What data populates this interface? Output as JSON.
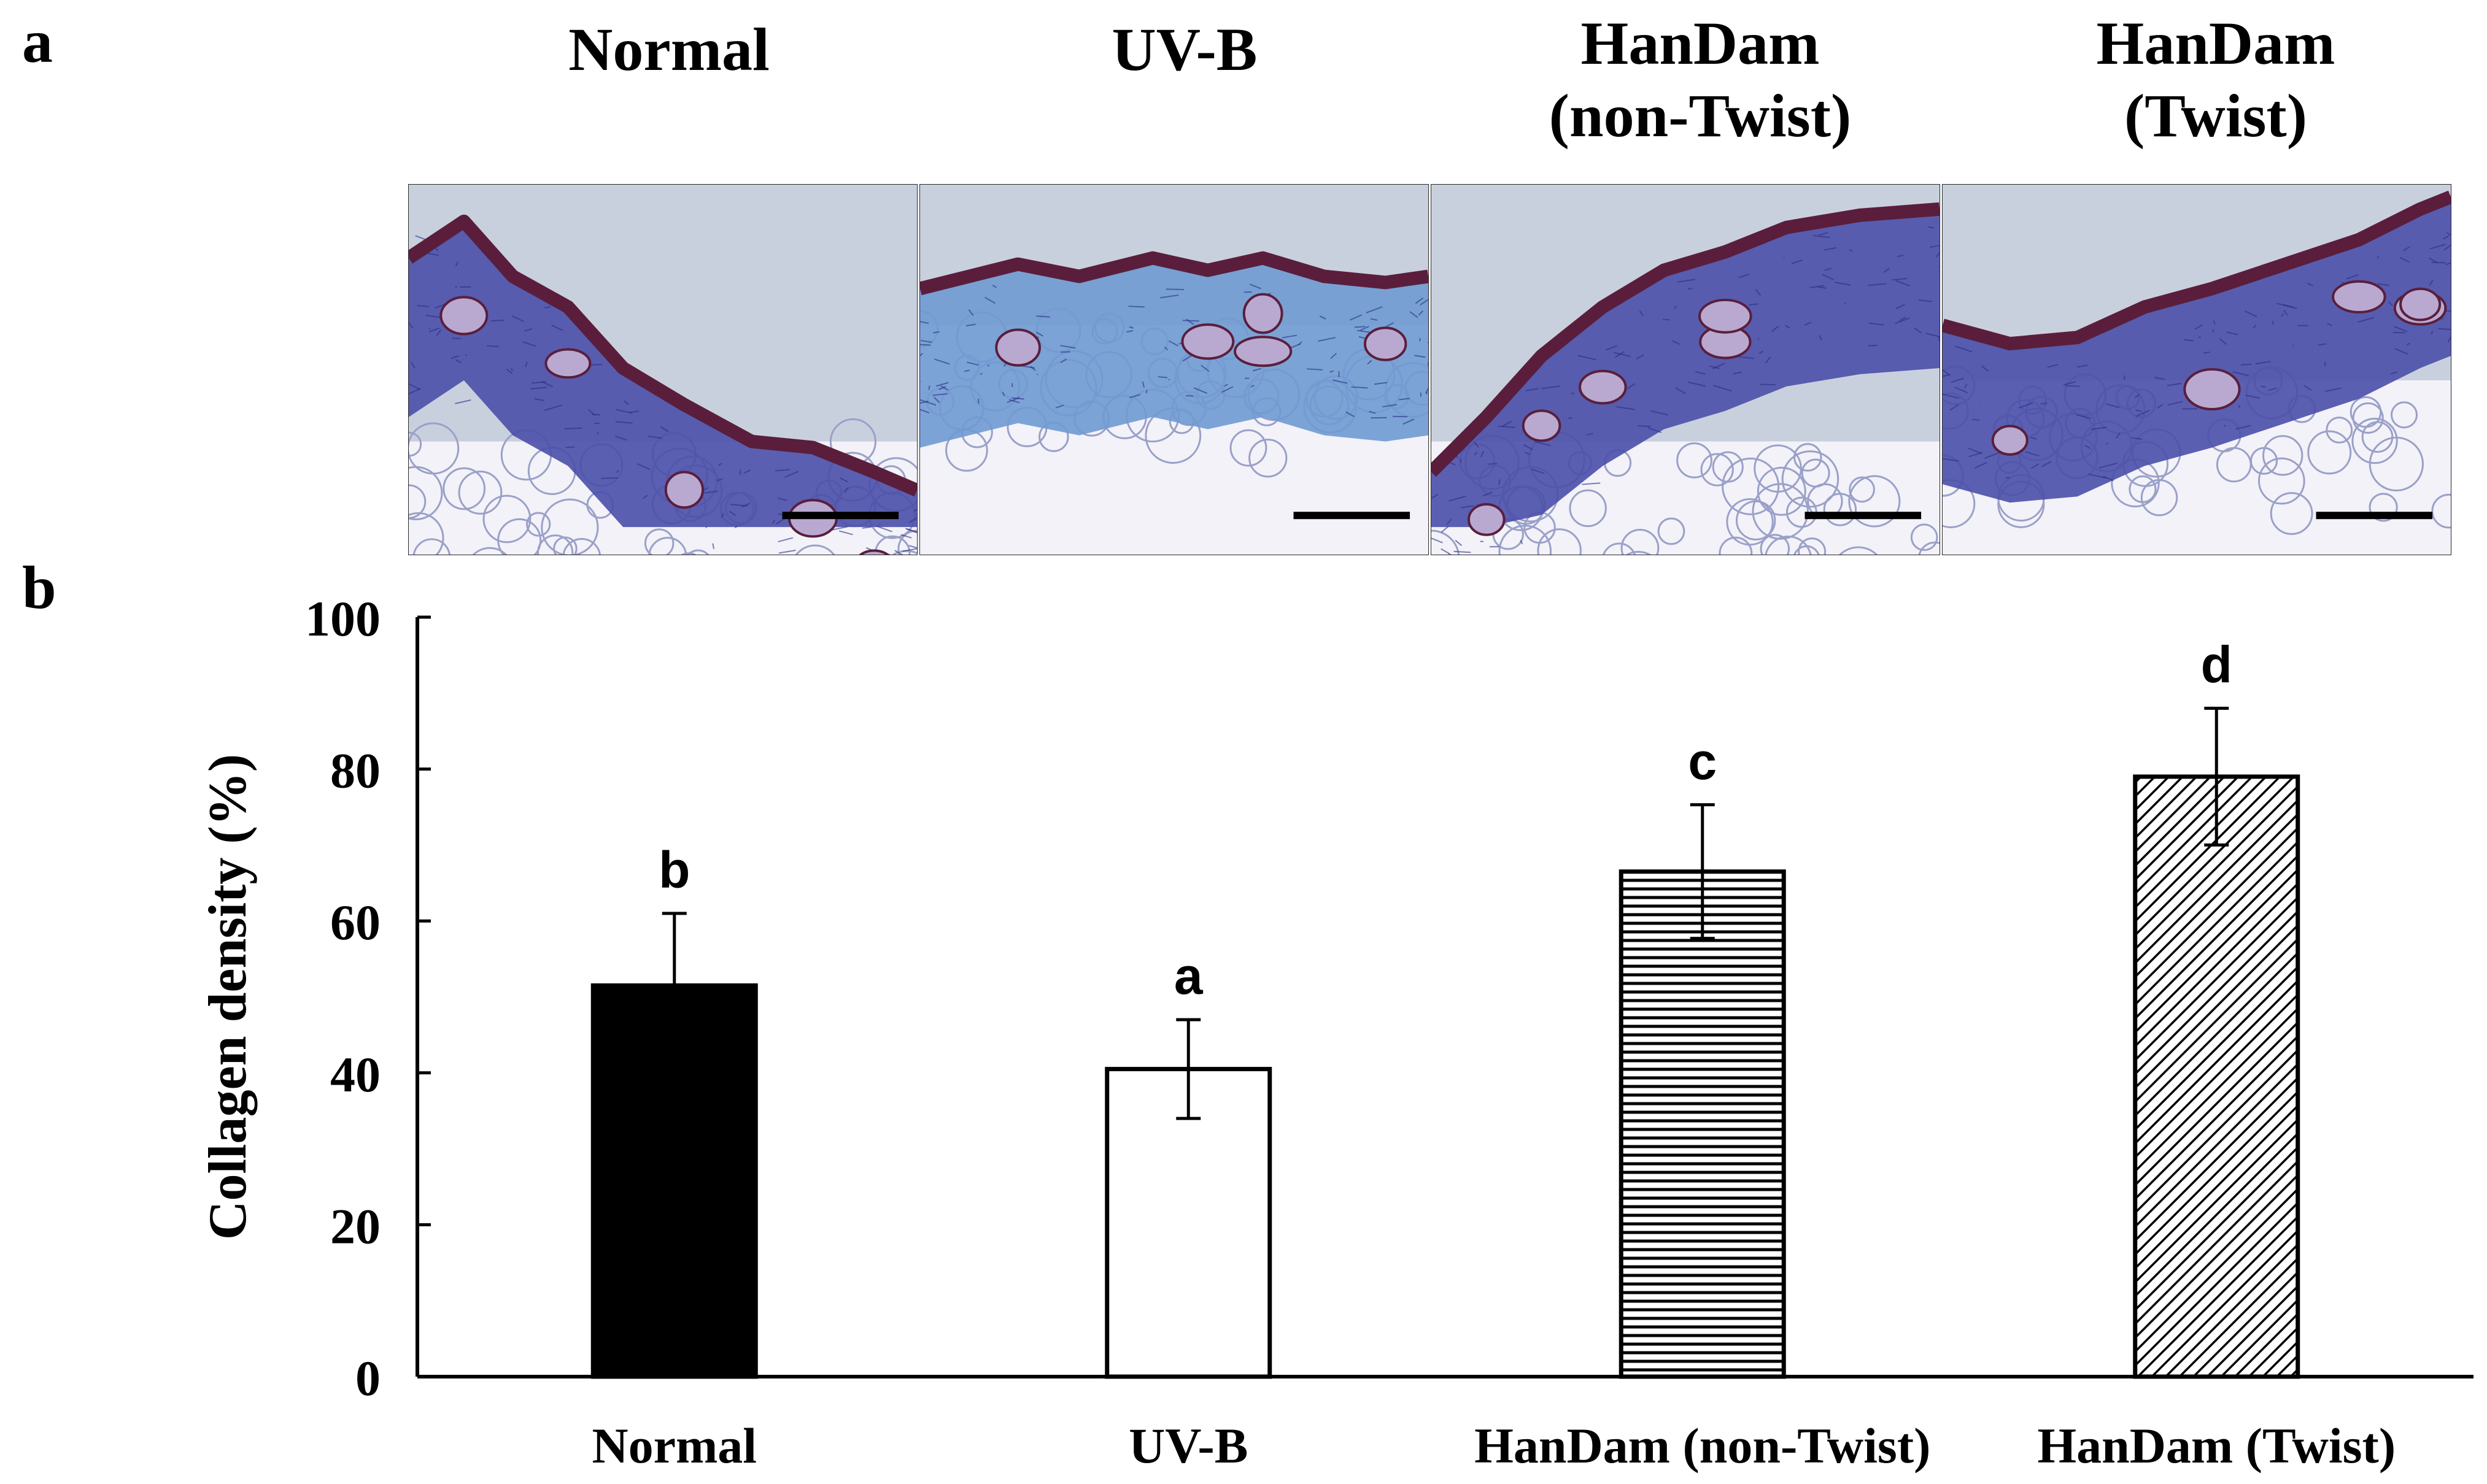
{
  "panel_labels": {
    "a": "a",
    "b": "b"
  },
  "micrograph_columns": [
    {
      "line1": "",
      "line2": "Normal"
    },
    {
      "line1": "",
      "line2": "UV-B"
    },
    {
      "line1": "HanDam",
      "line2": "(non-Twist)"
    },
    {
      "line1": "HanDam",
      "line2": "(Twist)"
    }
  ],
  "micrograph_tissue": [
    "skin-section-normal",
    "skin-section-uvb",
    "skin-section-handam-non-twist",
    "skin-section-handam-twist"
  ],
  "colors": {
    "background": "#c9d0dd",
    "epidermis": "#5a1e3c",
    "dermis": "#4a4fa8",
    "collagen_light": "#6f9ad2",
    "fat": "#f2f2f8",
    "scale_bar": "#000000",
    "axis": "#000000"
  },
  "chart_data": {
    "type": "bar",
    "categories": [
      "Normal",
      "UV-B",
      "HanDam (non-Twist)",
      "HanDam (Twist)"
    ],
    "values": [
      51.5,
      40.5,
      66.5,
      79
    ],
    "errors": [
      9.5,
      6.5,
      8.8,
      9
    ],
    "significance": [
      "b",
      "a",
      "c",
      "d"
    ],
    "bar_fills": [
      "solid-black",
      "white",
      "horizontal-hatch",
      "diagonal-hatch"
    ],
    "ylabel": "Collagen density (%)",
    "xlabel": "",
    "ylim": [
      0,
      100
    ],
    "yticks": [
      0,
      20,
      40,
      60,
      80,
      100
    ],
    "grid": false,
    "legend": "none"
  }
}
